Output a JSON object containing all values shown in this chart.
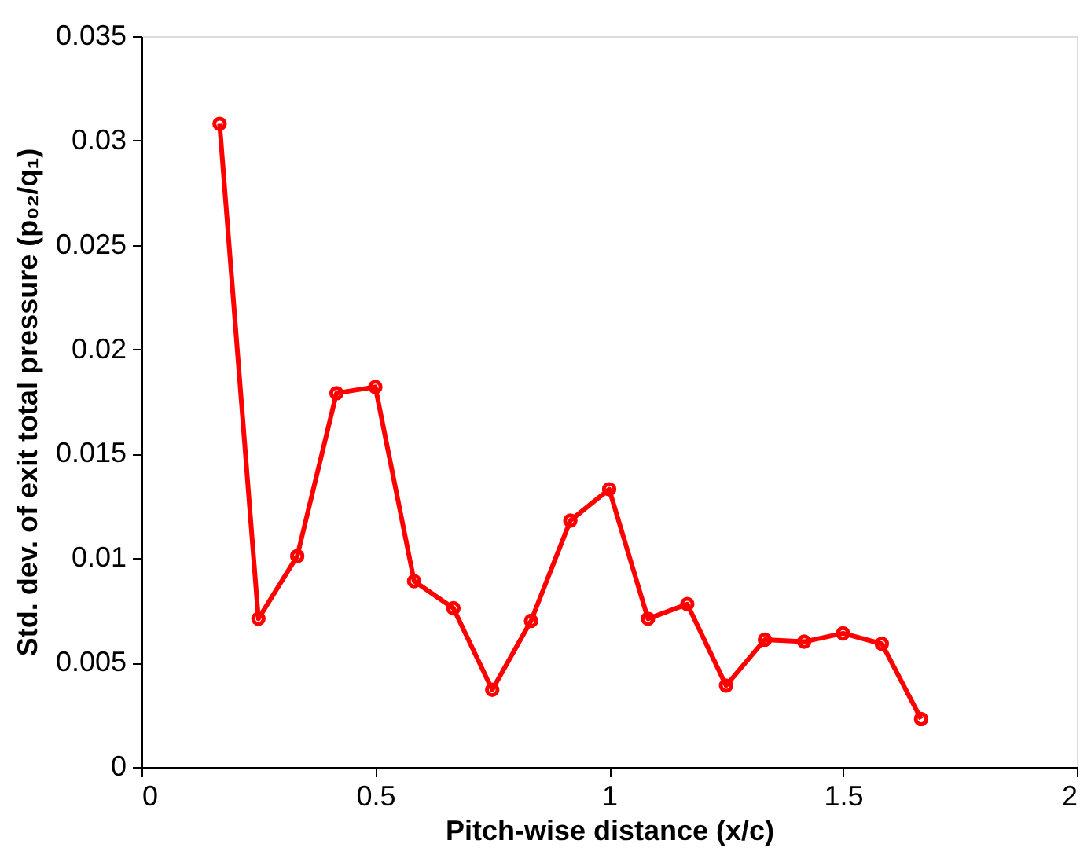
{
  "chart_data": {
    "type": "line",
    "xlabel": "Pitch-wise distance (x/c)",
    "ylabel": "Std. dev. of exit total pressure (p₀₂/q₁)",
    "x": [
      0.167,
      0.25,
      0.333,
      0.417,
      0.5,
      0.583,
      0.667,
      0.75,
      0.833,
      0.917,
      1.0,
      1.083,
      1.167,
      1.25,
      1.333,
      1.417,
      1.5,
      1.583,
      1.667
    ],
    "series": [
      {
        "color": "#ff0000",
        "values": [
          0.0308,
          0.0071,
          0.0101,
          0.0179,
          0.0182,
          0.0089,
          0.0076,
          0.0037,
          0.007,
          0.0118,
          0.0133,
          0.0071,
          0.0078,
          0.0039,
          0.0061,
          0.006,
          0.0064,
          0.0059,
          0.0023
        ]
      }
    ],
    "xlim": [
      0,
      2
    ],
    "xticks": [
      0,
      0.5,
      1,
      1.5,
      2
    ],
    "ylim": [
      0,
      0.035
    ],
    "yticks": [
      0,
      0.005,
      0.01,
      0.015,
      0.02,
      0.025,
      0.03,
      0.035
    ],
    "grid": false,
    "marker": "circle",
    "line_style": "solid"
  }
}
